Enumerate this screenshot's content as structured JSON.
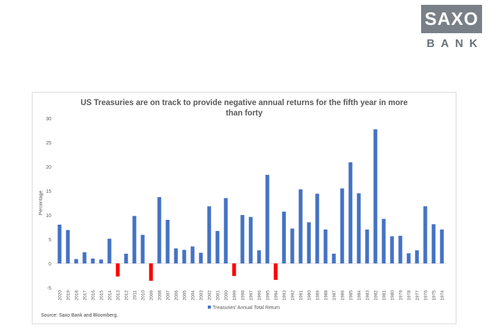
{
  "logo": {
    "word": "SAXO",
    "sub": "BANK"
  },
  "chart_data": {
    "type": "bar",
    "title": "US Treasuries are on track to provide negative annual returns for the fifth year in more than forty",
    "ylabel": "Percentage",
    "xlabel": "",
    "ylim": [
      -5,
      30
    ],
    "yticks": [
      -5,
      0,
      5,
      10,
      15,
      20,
      25,
      30
    ],
    "grid": false,
    "legend": "bottom",
    "categories": [
      "2020",
      "2019",
      "2018",
      "2017",
      "2016",
      "2015",
      "2014",
      "2013",
      "2012",
      "2011",
      "2010",
      "2009",
      "2008",
      "2007",
      "2006",
      "2005",
      "2004",
      "2003",
      "2002",
      "2001",
      "2000",
      "1999",
      "1998",
      "1997",
      "1996",
      "1995",
      "1994",
      "1993",
      "1992",
      "1991",
      "1990",
      "1989",
      "1988",
      "1987",
      "1986",
      "1985",
      "1984",
      "1983",
      "1982",
      "1981",
      "1980",
      "1979",
      "1978",
      "1977",
      "1976",
      "1975",
      "1974"
    ],
    "series": [
      {
        "name": "Treasuries' Annual Total Return",
        "values": [
          8.0,
          6.9,
          0.9,
          2.3,
          1.0,
          0.8,
          5.1,
          -2.7,
          2.0,
          9.8,
          5.9,
          -3.6,
          13.7,
          9.0,
          3.1,
          2.8,
          3.5,
          2.2,
          11.8,
          6.7,
          13.5,
          -2.6,
          10.0,
          9.6,
          2.7,
          18.3,
          -3.4,
          10.7,
          7.2,
          15.3,
          8.5,
          14.4,
          7.0,
          2.0,
          15.5,
          20.9,
          14.5,
          7.0,
          27.7,
          9.2,
          5.6,
          5.7,
          2.1,
          2.7,
          11.8,
          8.1,
          7.0
        ]
      }
    ],
    "source": "Source: Saxo Bank and Bloomberg.",
    "colors": {
      "positive": "#4472c4",
      "negative": "#ff0000",
      "axis_text": "#595959"
    }
  }
}
